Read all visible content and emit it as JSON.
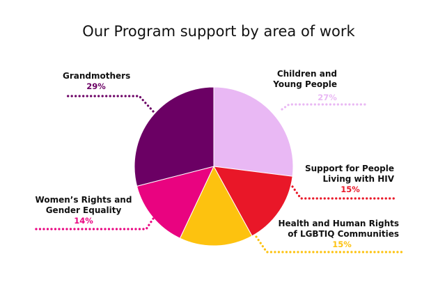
{
  "chart_data": {
    "type": "pie",
    "title": "Our Program support by area of work",
    "slices": [
      {
        "lines": [
          "Children and",
          "Young People"
        ],
        "value": 27,
        "value_label": "27%",
        "color": "#E9B8F4"
      },
      {
        "lines": [
          "Support for People",
          "Living with HIV"
        ],
        "value": 15,
        "value_label": "15%",
        "color": "#E91728"
      },
      {
        "lines": [
          "Health and Human Rights",
          "of LGBTIQ Communities"
        ],
        "value": 15,
        "value_label": "15%",
        "color": "#FDC20F"
      },
      {
        "lines": [
          "Women’s Rights and",
          "Gender Equality"
        ],
        "value": 14,
        "value_label": "14%",
        "color": "#E90380"
      },
      {
        "lines": [
          "Grandmothers"
        ],
        "value": 29,
        "value_label": "29%",
        "color": "#6B0064"
      }
    ],
    "start_position": "top (12 o'clock)",
    "direction": "clockwise",
    "legend": "none (direct labels with dotted leader lines)"
  }
}
